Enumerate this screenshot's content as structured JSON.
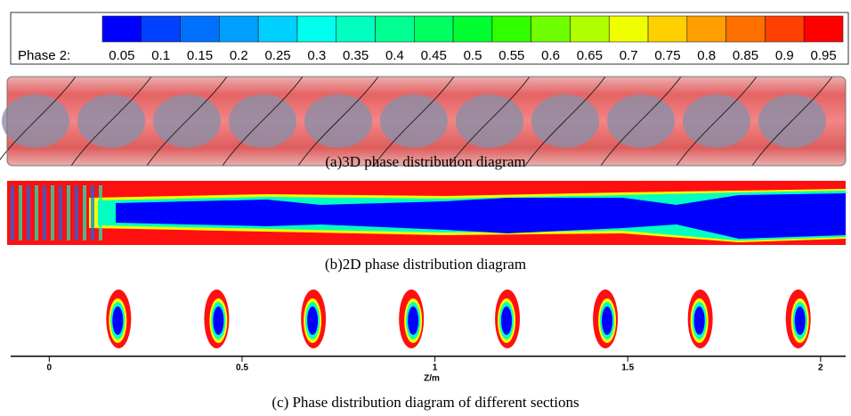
{
  "chart_data": {
    "type": "phase-figure",
    "colorbar": {
      "label": "Phase 2:",
      "ticks": [
        0.05,
        0.1,
        0.15,
        0.2,
        0.25,
        0.3,
        0.35,
        0.4,
        0.45,
        0.5,
        0.55,
        0.6,
        0.65,
        0.7,
        0.75,
        0.8,
        0.85,
        0.9,
        0.95
      ],
      "colors": [
        "#0000ff",
        "#0040ff",
        "#0070ff",
        "#00a0ff",
        "#00d0ff",
        "#00ffee",
        "#00ffc0",
        "#00ff90",
        "#00ff60",
        "#00ff30",
        "#30ff00",
        "#70ff00",
        "#b0ff00",
        "#f0ff00",
        "#ffd000",
        "#ffa000",
        "#ff7000",
        "#ff4000",
        "#ff0000"
      ]
    },
    "caption_a": "(a)3D phase distribution diagram",
    "caption_b": "(b)2D phase distribution diagram",
    "caption_c": "(c) Phase distribution diagram of different sections",
    "xlabel": "Z/m",
    "xlim": [
      -0.1,
      2.065
    ],
    "xticks": [
      0,
      0.5,
      1,
      1.5,
      2
    ],
    "sections": [
      0.18,
      0.434,
      0.685,
      0.939,
      1.188,
      1.442,
      1.688,
      1.942
    ]
  }
}
